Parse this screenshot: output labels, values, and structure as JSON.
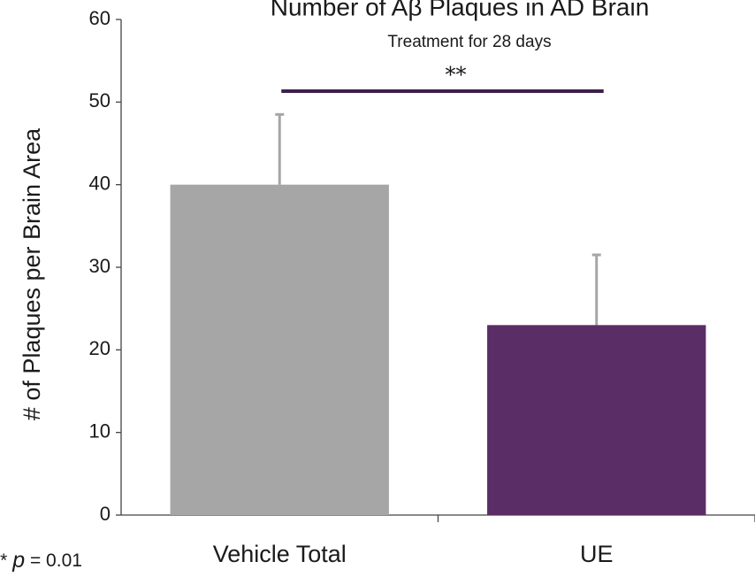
{
  "chart_data": {
    "type": "bar",
    "title": "Number of Aβ Plaques in AD Brain",
    "subtitle": "Treatment for 28 days",
    "y_label": "# of Plaques per Brain Area",
    "categories": [
      "Vehicle Total",
      "UE"
    ],
    "values": [
      40,
      23
    ],
    "errors": [
      8.5,
      8.5
    ],
    "colors": [
      "#a6a6a6",
      "#5b2d66"
    ],
    "error_color": "#a6a6a6",
    "ylim": [
      0,
      60
    ],
    "yticks": [
      0,
      10,
      20,
      30,
      40,
      50,
      60
    ],
    "significance": {
      "label": "**",
      "color": "#3d1f4c"
    },
    "footnote": [
      "**",
      "p",
      "= 0.01"
    ]
  }
}
